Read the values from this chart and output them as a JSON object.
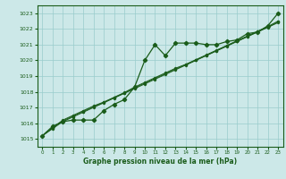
{
  "title": "Graphe pression niveau de la mer (hPa)",
  "bg_color": "#cce8e8",
  "grid_color": "#99cccc",
  "line_color": "#1a5c1a",
  "xlim": [
    -0.5,
    23.5
  ],
  "ylim": [
    1014.5,
    1023.5
  ],
  "yticks": [
    1015,
    1016,
    1017,
    1018,
    1019,
    1020,
    1021,
    1022,
    1023
  ],
  "x_ticks": [
    0,
    1,
    2,
    3,
    4,
    5,
    6,
    7,
    8,
    9,
    10,
    11,
    12,
    13,
    14,
    15,
    16,
    17,
    18,
    19,
    20,
    21,
    22,
    23
  ],
  "series_main": [
    1015.2,
    1015.8,
    1016.1,
    1016.2,
    1016.2,
    1016.2,
    1016.8,
    1017.2,
    1017.5,
    1018.3,
    1020.0,
    1021.0,
    1020.3,
    1021.1,
    1021.1,
    1021.1,
    1021.0,
    1021.0,
    1021.2,
    1021.3,
    1021.7,
    1021.8,
    1022.2,
    1023.0
  ],
  "series_smooth1": [
    1015.2,
    1015.65,
    1016.1,
    1016.4,
    1016.7,
    1017.0,
    1017.3,
    1017.6,
    1017.9,
    1018.2,
    1018.5,
    1018.8,
    1019.1,
    1019.4,
    1019.7,
    1020.0,
    1020.3,
    1020.6,
    1020.9,
    1021.2,
    1021.5,
    1021.8,
    1022.1,
    1022.4
  ],
  "series_smooth2": [
    1015.2,
    1015.7,
    1016.2,
    1016.5,
    1016.8,
    1017.1,
    1017.35,
    1017.65,
    1017.95,
    1018.3,
    1018.6,
    1018.9,
    1019.2,
    1019.5,
    1019.75,
    1020.05,
    1020.35,
    1020.65,
    1020.95,
    1021.25,
    1021.55,
    1021.85,
    1022.15,
    1022.5
  ],
  "series_smooth3": [
    1015.2,
    1015.72,
    1016.15,
    1016.45,
    1016.75,
    1017.05,
    1017.32,
    1017.62,
    1017.92,
    1018.25,
    1018.55,
    1018.85,
    1019.15,
    1019.45,
    1019.72,
    1020.02,
    1020.32,
    1020.62,
    1020.92,
    1021.22,
    1021.52,
    1021.82,
    1022.12,
    1022.45
  ]
}
